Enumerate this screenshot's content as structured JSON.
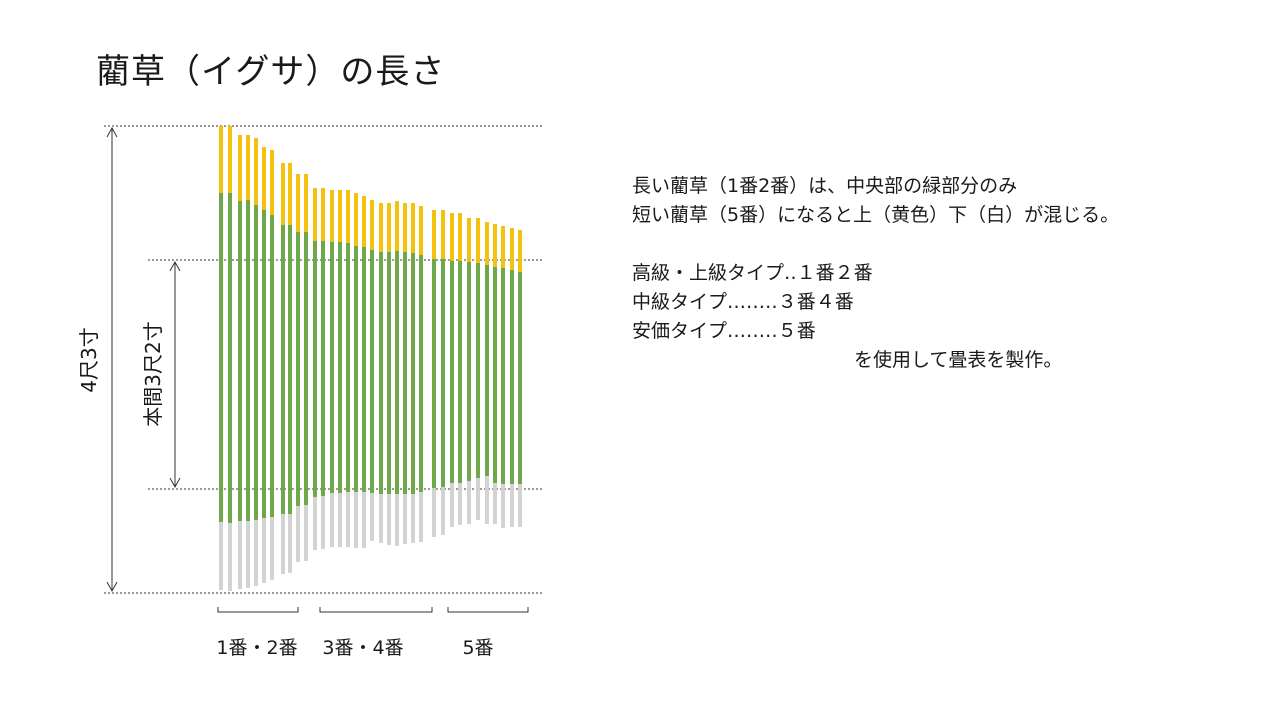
{
  "title": "藺草（イグサ）の長さ",
  "labels": {
    "total_length": "4尺3寸",
    "main_length": "本間3尺2寸"
  },
  "groups": [
    "1番・2番",
    "3番・4番",
    "5番"
  ],
  "notes": {
    "line1": "長い藺草（1番2番）は、中央部の緑部分のみ",
    "line2": "短い藺草（5番）になると上（黄色）下（白）が混じる。",
    "grade1": "高級・上級タイプ‥１番２番",
    "grade2": "中級タイプ‥‥‥‥３番４番",
    "grade3": "安価タイプ‥‥‥‥５番",
    "line_last": "を使用して畳表を製作。"
  },
  "colors": {
    "top_segment": "#f5c10f",
    "middle_segment": "#6fa84a",
    "bottom_segment": "#d3d3d3"
  }
}
